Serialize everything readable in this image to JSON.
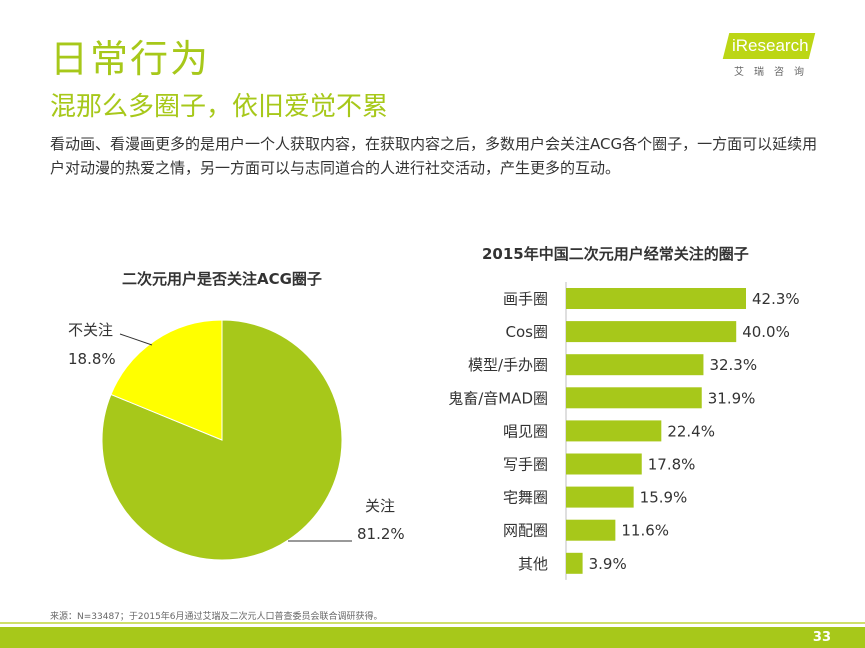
{
  "header": {
    "title": "日常行为",
    "subtitle": "混那么多圈子，依旧爱觉不累",
    "intro": "看动画、看漫画更多的是用户一个人获取内容，在获取内容之后，多数用户会关注ACG各个圈子，一方面可以延续用户对动漫的热爱之情，另一方面可以与志同道合的人进行社交活动，产生更多的互动。"
  },
  "logo": {
    "brand": "iResearch",
    "cn": "艾瑞咨询"
  },
  "colors": {
    "accent": "#a7c81a",
    "pie_follow": "#a7c81a",
    "pie_not_follow": "#ffff00",
    "bar": "#a7c81a"
  },
  "chart_data": [
    {
      "type": "pie",
      "title": "二次元用户是否关注ACG圈子",
      "categories": [
        "关注",
        "不关注"
      ],
      "values": [
        81.2,
        18.8
      ],
      "labels": [
        "81.2%",
        "18.8%"
      ],
      "legend": "none"
    },
    {
      "type": "bar",
      "orientation": "horizontal",
      "title": "2015年中国二次元用户经常关注的圈子",
      "categories": [
        "画手圈",
        "Cos圈",
        "模型/手办圈",
        "鬼畜/音MAD圈",
        "唱见圈",
        "写手圈",
        "宅舞圈",
        "网配圈",
        "其他"
      ],
      "values": [
        42.3,
        40.0,
        32.3,
        31.9,
        22.4,
        17.8,
        15.9,
        11.6,
        3.9
      ],
      "labels": [
        "42.3%",
        "40.0%",
        "32.3%",
        "31.9%",
        "22.4%",
        "17.8%",
        "15.9%",
        "11.6%",
        "3.9%"
      ],
      "grid": false
    }
  ],
  "footer": {
    "source": "来源：N=33487；于2015年6月通过艾瑞及二次元人口普查委员会联合调研获得。",
    "page": "33"
  }
}
